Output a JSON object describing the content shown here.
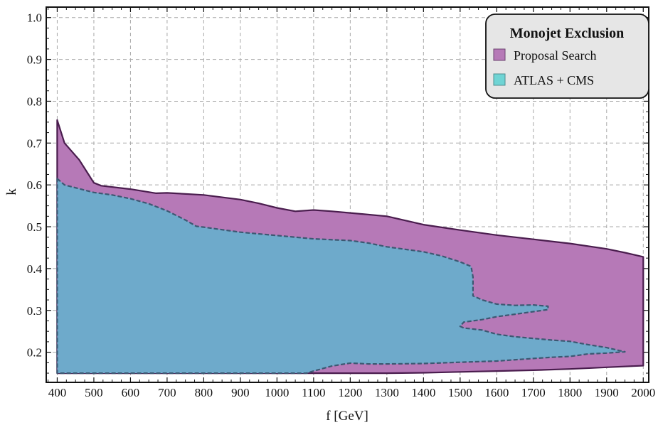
{
  "chart_data": {
    "type": "area",
    "xlabel": "f [GeV]",
    "ylabel": "k",
    "xlim": [
      370,
      2015
    ],
    "ylim": [
      0.128,
      1.025
    ],
    "x_ticks": [
      400,
      500,
      600,
      700,
      800,
      900,
      1000,
      1100,
      1200,
      1300,
      1400,
      1500,
      1600,
      1700,
      1800,
      1900,
      2000
    ],
    "y_ticks": [
      0.2,
      0.3,
      0.4,
      0.5,
      0.6,
      0.7,
      0.8,
      0.9,
      1.0
    ],
    "grid": true,
    "legend": {
      "title": "Monojet Exclusion",
      "placement": "top-right",
      "entries": [
        "Proposal Search",
        "ATLAS + CMS"
      ]
    },
    "series": [
      {
        "name": "Proposal Search",
        "color": "#b679b7",
        "edge_color": "#4a1d4e",
        "edge_style": "solid",
        "boundary": [
          [
            400,
            0.755
          ],
          [
            420,
            0.7
          ],
          [
            460,
            0.66
          ],
          [
            500,
            0.605
          ],
          [
            520,
            0.598
          ],
          [
            600,
            0.59
          ],
          [
            670,
            0.58
          ],
          [
            700,
            0.581
          ],
          [
            800,
            0.576
          ],
          [
            900,
            0.565
          ],
          [
            950,
            0.556
          ],
          [
            1000,
            0.545
          ],
          [
            1050,
            0.537
          ],
          [
            1100,
            0.54
          ],
          [
            1150,
            0.537
          ],
          [
            1200,
            0.533
          ],
          [
            1300,
            0.525
          ],
          [
            1400,
            0.505
          ],
          [
            1500,
            0.492
          ],
          [
            1600,
            0.48
          ],
          [
            1700,
            0.47
          ],
          [
            1800,
            0.46
          ],
          [
            1900,
            0.447
          ],
          [
            1950,
            0.438
          ],
          [
            2000,
            0.428
          ],
          [
            2000,
            0.168
          ],
          [
            1900,
            0.164
          ],
          [
            1800,
            0.16
          ],
          [
            1700,
            0.157
          ],
          [
            1600,
            0.155
          ],
          [
            1500,
            0.153
          ],
          [
            1400,
            0.151
          ],
          [
            1300,
            0.15
          ],
          [
            1200,
            0.15
          ],
          [
            1100,
            0.15
          ],
          [
            400,
            0.15
          ]
        ]
      },
      {
        "name": "ATLAS + CMS",
        "color": "#6eaacb",
        "edge_color": "#3c5872",
        "edge_style": "dashed",
        "boundary": [
          [
            400,
            0.615
          ],
          [
            420,
            0.6
          ],
          [
            500,
            0.582
          ],
          [
            550,
            0.576
          ],
          [
            600,
            0.567
          ],
          [
            650,
            0.555
          ],
          [
            700,
            0.538
          ],
          [
            750,
            0.516
          ],
          [
            780,
            0.501
          ],
          [
            800,
            0.499
          ],
          [
            850,
            0.493
          ],
          [
            900,
            0.487
          ],
          [
            1000,
            0.479
          ],
          [
            1100,
            0.471
          ],
          [
            1200,
            0.467
          ],
          [
            1250,
            0.461
          ],
          [
            1300,
            0.452
          ],
          [
            1350,
            0.446
          ],
          [
            1400,
            0.44
          ],
          [
            1450,
            0.43
          ],
          [
            1500,
            0.416
          ],
          [
            1530,
            0.405
          ],
          [
            1535,
            0.38
          ],
          [
            1535,
            0.335
          ],
          [
            1560,
            0.325
          ],
          [
            1600,
            0.315
          ],
          [
            1650,
            0.312
          ],
          [
            1700,
            0.313
          ],
          [
            1740,
            0.31
          ],
          [
            1740,
            0.302
          ],
          [
            1700,
            0.297
          ],
          [
            1650,
            0.291
          ],
          [
            1600,
            0.285
          ],
          [
            1560,
            0.278
          ],
          [
            1510,
            0.272
          ],
          [
            1500,
            0.262
          ],
          [
            1510,
            0.258
          ],
          [
            1560,
            0.253
          ],
          [
            1600,
            0.243
          ],
          [
            1650,
            0.237
          ],
          [
            1700,
            0.233
          ],
          [
            1750,
            0.229
          ],
          [
            1800,
            0.226
          ],
          [
            1850,
            0.218
          ],
          [
            1900,
            0.211
          ],
          [
            1930,
            0.205
          ],
          [
            1950,
            0.201
          ],
          [
            1900,
            0.198
          ],
          [
            1850,
            0.196
          ],
          [
            1800,
            0.19
          ],
          [
            1750,
            0.188
          ],
          [
            1700,
            0.185
          ],
          [
            1600,
            0.179
          ],
          [
            1500,
            0.176
          ],
          [
            1400,
            0.173
          ],
          [
            1300,
            0.172
          ],
          [
            1250,
            0.172
          ],
          [
            1200,
            0.174
          ],
          [
            1150,
            0.167
          ],
          [
            1100,
            0.155
          ],
          [
            1080,
            0.15
          ],
          [
            400,
            0.15
          ]
        ]
      }
    ]
  }
}
